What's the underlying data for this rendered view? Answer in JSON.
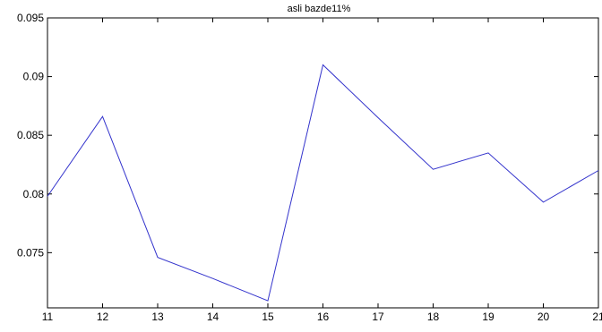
{
  "chart_data": {
    "type": "line",
    "title": "asli bazde11%",
    "xlabel": "",
    "ylabel": "",
    "xlim": [
      11,
      21
    ],
    "ylim": [
      0.0703,
      0.095
    ],
    "grid": false,
    "x_ticks": [
      11,
      12,
      13,
      14,
      15,
      16,
      17,
      18,
      19,
      20,
      21
    ],
    "x_tick_labels": [
      "11",
      "12",
      "13",
      "14",
      "15",
      "16",
      "17",
      "18",
      "19",
      "20",
      "21"
    ],
    "y_ticks": [
      0.075,
      0.08,
      0.085,
      0.09,
      0.095
    ],
    "y_tick_labels": [
      "0.075",
      "0.08",
      "0.085",
      "0.09",
      "0.095"
    ],
    "series": [
      {
        "color": "#3333cc",
        "x": [
          11,
          12,
          13,
          14,
          15,
          16,
          17,
          18,
          19,
          20,
          21
        ],
        "y": [
          0.0798,
          0.0866,
          0.0746,
          0.0728,
          0.0709,
          0.091,
          0.0865,
          0.0821,
          0.0835,
          0.0793,
          0.082
        ]
      }
    ]
  }
}
